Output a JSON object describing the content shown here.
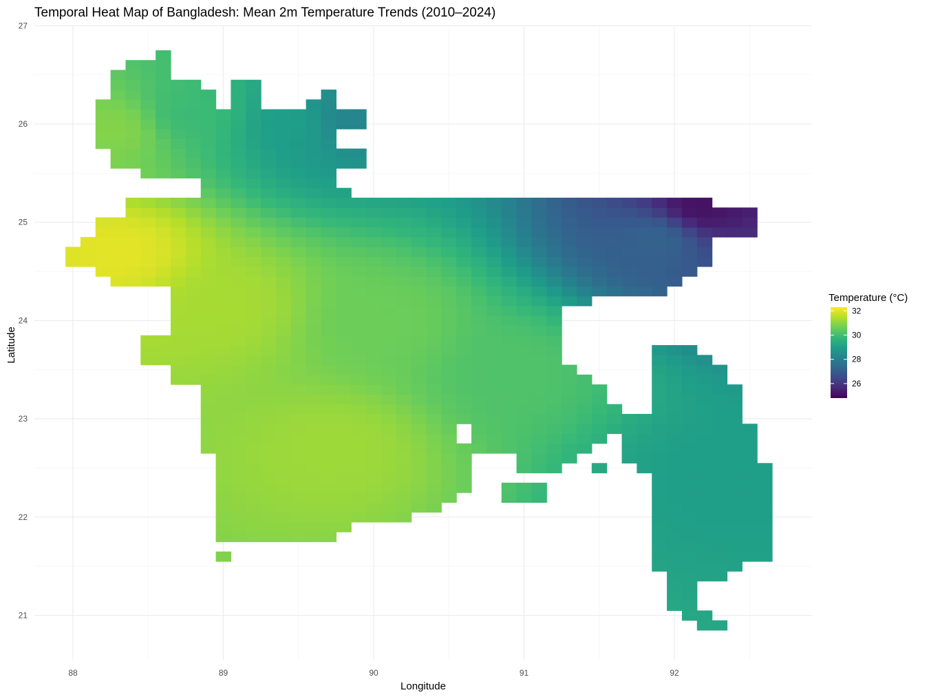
{
  "chart_data": {
    "type": "heatmap",
    "title": "Temporal Heat Map of Bangladesh: Mean 2m Temperature Trends (2010–2024)",
    "xlabel": "Longitude",
    "ylabel": "Latitude",
    "xlim": [
      87.95,
      92.95
    ],
    "ylim": [
      20.55,
      27.0
    ],
    "x_ticks": [
      88,
      89,
      90,
      91,
      92
    ],
    "y_ticks": [
      21,
      22,
      23,
      24,
      25,
      26,
      27
    ],
    "grid": true,
    "cell_size_deg": 0.1,
    "colorscale": "viridis",
    "legend": {
      "title": "Temperature (°C)",
      "position": "right",
      "range": [
        24.8,
        32.3
      ],
      "ticks": [
        26,
        28,
        30,
        32
      ]
    },
    "value_summary": {
      "min": 24.9,
      "max": 32.3,
      "hottest_region": "west (near 88.1E, 24.7N)",
      "coolest_region": "north-east (near 92.2E, 25.2N)"
    },
    "regions": [
      {
        "lon": [
          88.1,
          88.5
        ],
        "lat": [
          25.7,
          26.2
        ],
        "value": 30.9
      },
      {
        "lon": [
          88.3,
          89.2
        ],
        "lat": [
          25.5,
          26.7
        ],
        "value": 29.9
      },
      {
        "lon": [
          89.0,
          90.0
        ],
        "lat": [
          25.5,
          26.5
        ],
        "value": 29.0
      },
      {
        "lon": [
          89.6,
          90.0
        ],
        "lat": [
          25.8,
          26.3
        ],
        "value": 28.2
      },
      {
        "lon": [
          88.0,
          88.6
        ],
        "lat": [
          24.4,
          25.0
        ],
        "value": 32.0
      },
      {
        "lon": [
          88.5,
          89.5
        ],
        "lat": [
          23.2,
          25.1
        ],
        "value": 31.3
      },
      {
        "lon": [
          89.5,
          90.6
        ],
        "lat": [
          23.0,
          25.0
        ],
        "value": 30.6
      },
      {
        "lon": [
          89.0,
          90.5
        ],
        "lat": [
          22.2,
          23.2
        ],
        "value": 31.2
      },
      {
        "lon": [
          90.5,
          91.4
        ],
        "lat": [
          22.5,
          24.5
        ],
        "value": 30.2
      },
      {
        "lon": [
          91.5,
          92.3
        ],
        "lat": [
          24.5,
          25.2
        ],
        "value": 27.2
      },
      {
        "lon": [
          92.0,
          92.3
        ],
        "lat": [
          25.1,
          25.2
        ],
        "value": 25.1
      },
      {
        "lon": [
          91.8,
          92.7
        ],
        "lat": [
          21.0,
          23.8
        ],
        "value": 29.0
      }
    ]
  }
}
